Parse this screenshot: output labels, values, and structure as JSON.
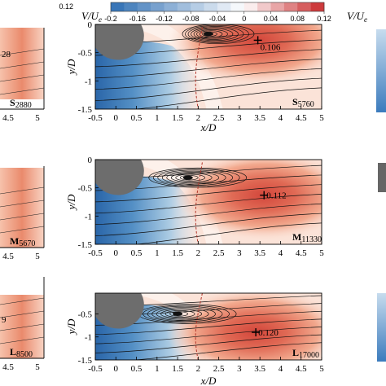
{
  "chart_data": {
    "type": "heatmap",
    "colorbar": {
      "label_main": "V/U",
      "label_sub": "e",
      "ticks": [
        "-0.2",
        "-0.16",
        "-0.12",
        "-0.08",
        "-0.04",
        "0",
        "0.04",
        "0.08",
        "0.12"
      ],
      "range": [
        -0.2,
        0.12
      ],
      "cmap": {
        "neg": "#2f6fb4",
        "zero": "#ffffff",
        "pos": "#c8282a"
      }
    },
    "left_partial_colorbar": {
      "tick_fragment": "0.12"
    },
    "right_partial_colorbar": {
      "label_main": "V/U",
      "label_sub": "e"
    },
    "axes": {
      "xlabel": "x/D",
      "ylabel": "y/D",
      "x_ticks": [
        "-0.5",
        "0",
        "0.5",
        "1",
        "1.5",
        "2",
        "2.5",
        "3",
        "3.5",
        "4",
        "4.5",
        "5"
      ],
      "xlim": [
        -0.5,
        5
      ],
      "y_ticks": [
        "0",
        "-0.5",
        "-1",
        "-1.5"
      ],
      "ylim": [
        -1.5,
        0
      ],
      "left_x_tick_fragments": [
        "4.5",
        "5"
      ]
    },
    "panels": [
      {
        "id": "S5760",
        "tag_main": "S",
        "tag_sub": "5760",
        "max_value": 0.106,
        "max_label": "0.106",
        "max_x": 3.45,
        "max_y": -0.28,
        "vortex_x": 2.25,
        "vortex_y": -0.17
      },
      {
        "id": "M11330",
        "tag_main": "M",
        "tag_sub": "11330",
        "max_value": 0.112,
        "max_label": "0.112",
        "max_x": 3.6,
        "max_y": -0.63,
        "vortex_x": 1.75,
        "vortex_y": -0.32
      },
      {
        "id": "L17000",
        "tag_main": "L",
        "tag_sub": "17000",
        "max_value": 0.12,
        "max_label": "0.120",
        "max_x": 3.4,
        "max_y": -0.9,
        "vortex_x": 1.5,
        "vortex_y": -0.5
      }
    ],
    "partial_panels_left": [
      {
        "tag_main": "S",
        "tag_sub": "2880",
        "value_fragment": "28"
      },
      {
        "tag_main": "M",
        "tag_sub": "5670",
        "value_fragment": ""
      },
      {
        "tag_main": "L",
        "tag_sub": "8500",
        "value_fragment": "9"
      }
    ]
  }
}
